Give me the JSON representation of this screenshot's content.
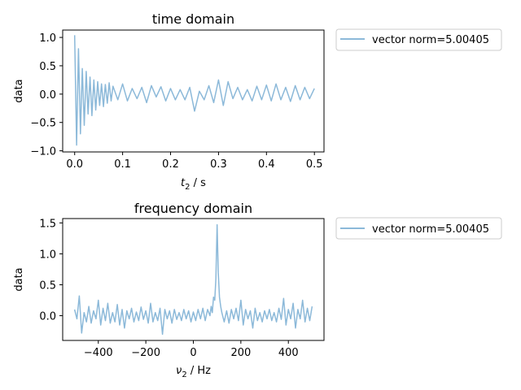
{
  "colors": {
    "series": "#8cb9d9",
    "frame": "#000000",
    "legend_border": "#cccccc"
  },
  "chart_data": [
    {
      "type": "line",
      "title": "time domain",
      "xlabel_var": "t",
      "xlabel_sub": "2",
      "xlabel_unit": " / s",
      "ylabel": "data",
      "xlim": [
        -0.025,
        0.52
      ],
      "ylim": [
        -1.02,
        1.13
      ],
      "xticks": [
        0.0,
        0.1,
        0.2,
        0.3,
        0.4,
        0.5
      ],
      "xtick_labels": [
        "0.0",
        "0.1",
        "0.2",
        "0.3",
        "0.4",
        "0.5"
      ],
      "yticks": [
        -1.0,
        -0.5,
        0.0,
        0.5,
        1.0
      ],
      "ytick_labels": [
        "−1.0",
        "−0.5",
        "0.0",
        "0.5",
        "1.0"
      ],
      "legend": {
        "entry": "vector norm=5.00405",
        "placement": "outside-right-top"
      },
      "series": [
        {
          "x": [
            0.0,
            0.004,
            0.008,
            0.012,
            0.016,
            0.02,
            0.024,
            0.028,
            0.032,
            0.036,
            0.04,
            0.044,
            0.048,
            0.052,
            0.056,
            0.06,
            0.064,
            0.068,
            0.072,
            0.076,
            0.08,
            0.09,
            0.1,
            0.11,
            0.12,
            0.13,
            0.14,
            0.15,
            0.16,
            0.17,
            0.18,
            0.19,
            0.2,
            0.21,
            0.22,
            0.23,
            0.24,
            0.25,
            0.26,
            0.27,
            0.28,
            0.29,
            0.3,
            0.31,
            0.32,
            0.33,
            0.34,
            0.35,
            0.36,
            0.37,
            0.38,
            0.39,
            0.4,
            0.41,
            0.42,
            0.43,
            0.44,
            0.45,
            0.46,
            0.47,
            0.48,
            0.49,
            0.5
          ],
          "y": [
            1.04,
            -0.9,
            0.8,
            -0.7,
            0.45,
            -0.55,
            0.4,
            -0.35,
            0.3,
            -0.38,
            0.25,
            -0.28,
            0.22,
            -0.2,
            0.18,
            -0.22,
            0.17,
            -0.16,
            0.2,
            -0.12,
            0.14,
            -0.1,
            0.18,
            -0.12,
            0.1,
            -0.08,
            0.12,
            -0.15,
            0.15,
            -0.05,
            0.13,
            -0.12,
            0.1,
            -0.1,
            0.08,
            -0.1,
            0.12,
            -0.3,
            0.05,
            -0.1,
            0.15,
            -0.15,
            0.25,
            -0.2,
            0.22,
            -0.08,
            0.12,
            -0.1,
            0.08,
            -0.12,
            0.14,
            -0.1,
            0.16,
            -0.12,
            0.18,
            -0.1,
            0.12,
            -0.13,
            0.15,
            -0.1,
            0.12,
            -0.08,
            0.1
          ]
        }
      ]
    },
    {
      "type": "line",
      "title": "frequency domain",
      "xlabel_var": "ν",
      "xlabel_sub": "2",
      "xlabel_unit": " / Hz",
      "ylabel": "data",
      "xlim": [
        -550,
        550
      ],
      "ylim": [
        -0.4,
        1.57
      ],
      "xticks": [
        -400,
        -200,
        0,
        200,
        400
      ],
      "xtick_labels": [
        "−400",
        "−200",
        "0",
        "200",
        "400"
      ],
      "yticks": [
        0.0,
        0.5,
        1.0,
        1.5
      ],
      "ytick_labels": [
        "0.0",
        "0.5",
        "1.0",
        "1.5"
      ],
      "legend": {
        "entry": "vector norm=5.00405",
        "placement": "outside-right-top"
      },
      "series": [
        {
          "x": [
            -500,
            -490,
            -480,
            -470,
            -460,
            -450,
            -440,
            -430,
            -420,
            -410,
            -400,
            -390,
            -380,
            -370,
            -360,
            -350,
            -340,
            -330,
            -320,
            -310,
            -300,
            -290,
            -280,
            -270,
            -260,
            -250,
            -240,
            -230,
            -220,
            -210,
            -200,
            -190,
            -180,
            -170,
            -160,
            -150,
            -140,
            -130,
            -120,
            -110,
            -100,
            -90,
            -80,
            -70,
            -60,
            -50,
            -40,
            -30,
            -20,
            -10,
            0,
            10,
            20,
            30,
            40,
            50,
            60,
            70,
            75,
            80,
            85,
            90,
            95,
            100,
            105,
            110,
            115,
            120,
            130,
            140,
            150,
            160,
            170,
            180,
            190,
            200,
            210,
            220,
            230,
            240,
            250,
            260,
            270,
            280,
            290,
            300,
            310,
            320,
            330,
            340,
            350,
            360,
            370,
            380,
            390,
            400,
            410,
            420,
            430,
            440,
            450,
            460,
            470,
            480,
            490,
            500
          ],
          "y": [
            0.1,
            -0.05,
            0.32,
            -0.28,
            0.05,
            -0.1,
            0.15,
            -0.12,
            0.08,
            -0.05,
            0.25,
            -0.15,
            0.12,
            -0.08,
            0.2,
            -0.12,
            0.05,
            -0.1,
            0.18,
            -0.15,
            0.1,
            -0.2,
            0.08,
            -0.05,
            0.12,
            -0.1,
            0.06,
            -0.08,
            0.14,
            -0.06,
            0.08,
            -0.12,
            0.2,
            -0.1,
            0.05,
            -0.08,
            0.12,
            -0.3,
            0.1,
            -0.05,
            0.08,
            -0.12,
            0.1,
            -0.06,
            0.05,
            -0.08,
            0.1,
            -0.05,
            0.08,
            -0.1,
            0.06,
            -0.08,
            0.1,
            -0.05,
            0.12,
            -0.08,
            0.1,
            0.0,
            0.15,
            0.05,
            0.3,
            0.25,
            0.6,
            1.47,
            0.7,
            0.3,
            0.15,
            0.05,
            -0.1,
            0.08,
            -0.12,
            0.1,
            -0.05,
            0.12,
            -0.08,
            0.25,
            -0.15,
            0.1,
            -0.05,
            0.08,
            -0.2,
            0.12,
            -0.08,
            0.05,
            -0.1,
            0.08,
            -0.05,
            0.1,
            -0.08,
            0.05,
            -0.1,
            0.12,
            -0.06,
            0.28,
            -0.15,
            0.1,
            -0.05,
            0.2,
            -0.2,
            0.1,
            -0.05,
            0.25,
            -0.1,
            0.12,
            -0.08,
            0.15
          ]
        }
      ]
    }
  ]
}
